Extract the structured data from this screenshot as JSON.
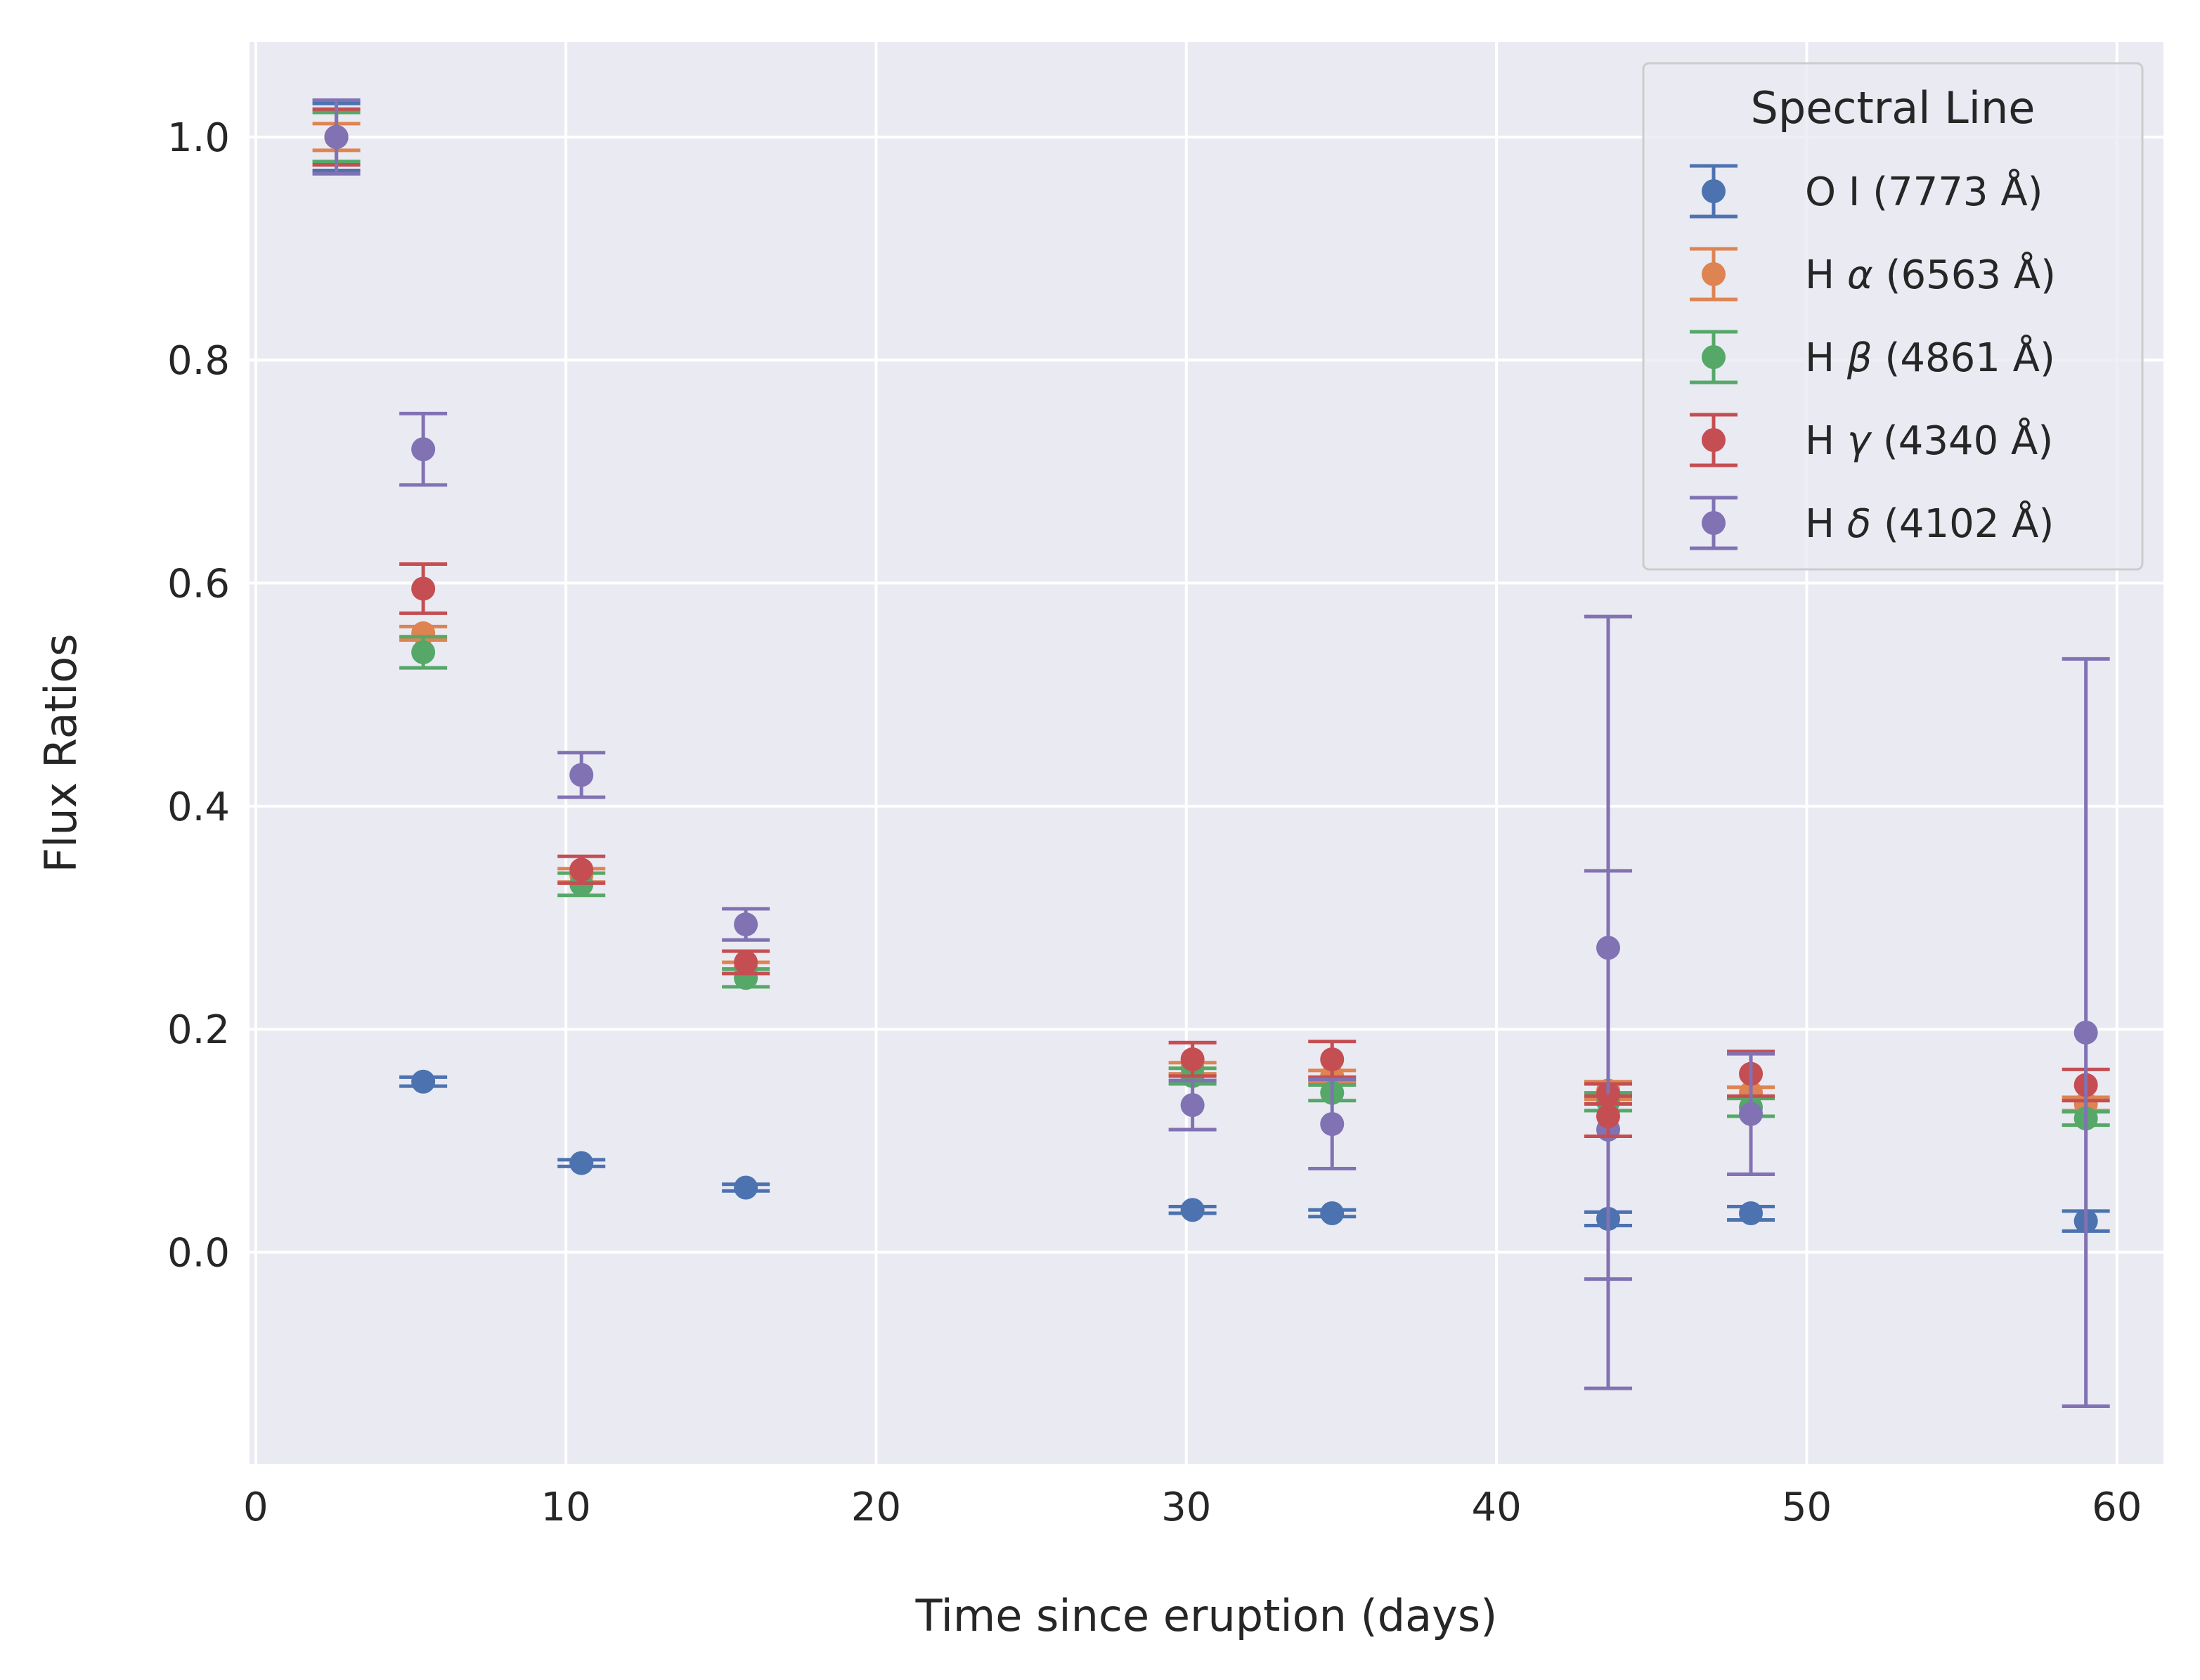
{
  "chart_data": {
    "type": "scatter",
    "title": "",
    "xlabel": "Time since eruption (days)",
    "ylabel": "Flux Ratios",
    "xlim": [
      -0.2,
      61.5
    ],
    "ylim": [
      -0.19,
      1.085
    ],
    "xticks": [
      0,
      10,
      20,
      30,
      40,
      50,
      60
    ],
    "yticks": [
      0.0,
      0.2,
      0.4,
      0.6,
      0.8,
      1.0
    ],
    "xtick_labels": [
      "0",
      "10",
      "20",
      "30",
      "40",
      "50",
      "60"
    ],
    "ytick_labels": [
      "0.0",
      "0.2",
      "0.4",
      "0.6",
      "0.8",
      "1.0"
    ],
    "grid": true,
    "legend": {
      "title": "Spectral Line",
      "position": "top-right"
    },
    "x": [
      2.6,
      5.4,
      10.5,
      15.8,
      30.2,
      34.7,
      43.6,
      48.2,
      59.0
    ],
    "series": [
      {
        "name": "O I (7773 Å)",
        "label_plain": "O I (7773 Å)",
        "color": "#4c72b0",
        "values": [
          1.0,
          0.153,
          0.08,
          0.058,
          0.038,
          0.035,
          0.03,
          0.035,
          0.028
        ],
        "errors": [
          0.03,
          0.004,
          0.003,
          0.003,
          0.003,
          0.003,
          0.006,
          0.006,
          0.009
        ]
      },
      {
        "name": "H α (6563 Å)",
        "label_prefix": "H ",
        "label_greek": "α",
        "label_suffix": " (6563 Å)",
        "color": "#dd8452",
        "values": [
          1.0,
          0.555,
          0.338,
          0.255,
          0.165,
          0.158,
          0.145,
          0.143,
          0.133
        ],
        "errors": [
          0.012,
          0.006,
          0.006,
          0.005,
          0.005,
          0.005,
          0.008,
          0.005,
          0.006
        ]
      },
      {
        "name": "H β (4861 Å)",
        "label_prefix": "H ",
        "label_greek": "β",
        "label_suffix": " (4861 Å)",
        "color": "#55a868",
        "values": [
          1.0,
          0.538,
          0.33,
          0.246,
          0.158,
          0.143,
          0.135,
          0.13,
          0.12
        ],
        "errors": [
          0.022,
          0.014,
          0.01,
          0.008,
          0.007,
          0.007,
          0.008,
          0.008,
          0.006
        ]
      },
      {
        "name": "H γ (4340 Å)",
        "label_prefix": "H ",
        "label_greek": "γ",
        "label_suffix": " (4340 Å)",
        "color": "#c44e52",
        "values": [
          1.0,
          0.595,
          0.343,
          0.26,
          0.173,
          0.173,
          0.142,
          0.16,
          0.15
        ],
        "errors": [
          0.025,
          0.022,
          0.012,
          0.01,
          0.015,
          0.016,
          0.009,
          0.02,
          0.014
        ]
      },
      {
        "name": "H δ (4102 Å)",
        "label_prefix": "H ",
        "label_greek": "δ",
        "label_suffix": " (4102 Å)",
        "color": "#8172b3",
        "values": [
          1.0,
          0.72,
          0.428,
          0.294,
          0.132,
          0.115,
          0.273,
          0.124,
          0.197
        ],
        "errors": [
          0.033,
          0.032,
          0.02,
          0.014,
          0.022,
          0.04,
          0.297,
          0.054,
          0.335
        ]
      }
    ],
    "extra_points": [
      {
        "series": "H δ (4102 Å)",
        "x": 43.6,
        "y": 0.11,
        "error": 0.232
      },
      {
        "series": "H γ (4340 Å)",
        "x": 43.6,
        "y": 0.122,
        "error": 0.018
      }
    ]
  }
}
